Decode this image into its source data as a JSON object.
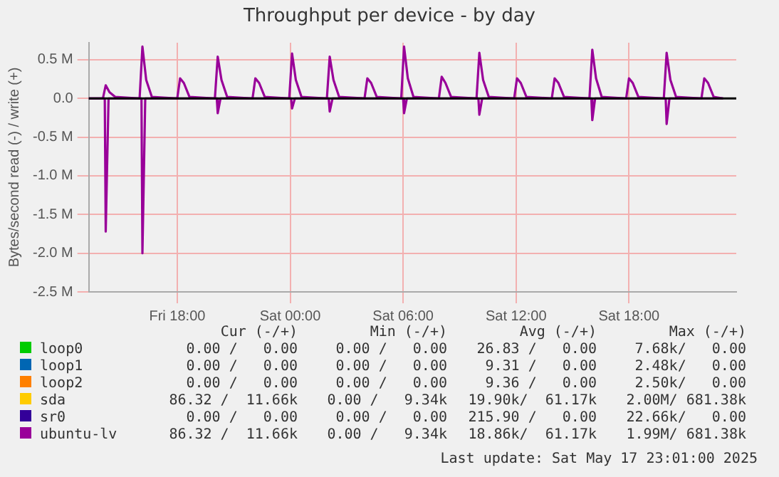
{
  "chart_data": {
    "type": "line",
    "title": "Throughput per device - by day",
    "ylabel": "Bytes/second read (-) / write (+)",
    "xlim": [
      "2025-05-16T13:18",
      "2025-05-17T23:42"
    ],
    "xticks": [
      {
        "value": "2025-05-16T18:00",
        "label": "Fri 18:00"
      },
      {
        "value": "2025-05-17T00:00",
        "label": "Sat 00:00"
      },
      {
        "value": "2025-05-17T06:00",
        "label": "Sat 06:00"
      },
      {
        "value": "2025-05-17T12:00",
        "label": "Sat 12:00"
      },
      {
        "value": "2025-05-17T18:00",
        "label": "Sat 18:00"
      }
    ],
    "ylim": [
      -2.5,
      0.72
    ],
    "yticks": [
      {
        "value": -2.5,
        "label": "-2.5 M"
      },
      {
        "value": -2,
        "label": "-2.0 M"
      },
      {
        "value": -1.5,
        "label": "-1.5 M"
      },
      {
        "value": -1,
        "label": "-1.0 M"
      },
      {
        "value": -0.5,
        "label": "-0.5 M"
      },
      {
        "value": 0,
        "label": "0.0"
      },
      {
        "value": 0.5,
        "label": "0.5 M"
      }
    ],
    "grid": true,
    "legend": "bottom",
    "marker": "none",
    "line_style": "solid",
    "ref_lines": [
      {
        "axis": "y",
        "value": 0,
        "color": "#000000"
      }
    ],
    "series": [
      {
        "name": "loop0",
        "color": "#00cc00"
      },
      {
        "name": "loop1",
        "color": "#0066b3"
      },
      {
        "name": "loop2",
        "color": "#ff8000"
      },
      {
        "name": "sda",
        "color": "#ffcc00"
      },
      {
        "name": "sr0",
        "color": "#330099"
      },
      {
        "name": "ubuntu-lv",
        "color": "#990099",
        "x": [
          "2025-05-16T13:18",
          "2025-05-16T14:03",
          "2025-05-16T14:12",
          "2025-05-16T14:24",
          "2025-05-16T14:42",
          "2025-05-16T16:00",
          "2025-05-16T16:09",
          "2025-05-16T16:21",
          "2025-05-16T16:39",
          "2025-05-16T18:00",
          "2025-05-16T18:09",
          "2025-05-16T18:21",
          "2025-05-16T18:39",
          "2025-05-16T20:00",
          "2025-05-16T20:09",
          "2025-05-16T20:21",
          "2025-05-16T20:39",
          "2025-05-16T22:00",
          "2025-05-16T22:09",
          "2025-05-16T22:21",
          "2025-05-16T22:39",
          "2025-05-16T23:57",
          "2025-05-17T00:06",
          "2025-05-17T00:18",
          "2025-05-17T00:36",
          "2025-05-17T01:57",
          "2025-05-17T02:06",
          "2025-05-17T02:18",
          "2025-05-17T02:36",
          "2025-05-17T03:57",
          "2025-05-17T04:06",
          "2025-05-17T04:18",
          "2025-05-17T04:36",
          "2025-05-17T05:54",
          "2025-05-17T06:03",
          "2025-05-17T06:15",
          "2025-05-17T06:33",
          "2025-05-17T07:54",
          "2025-05-17T08:03",
          "2025-05-17T08:15",
          "2025-05-17T08:33",
          "2025-05-17T09:54",
          "2025-05-17T10:03",
          "2025-05-17T10:15",
          "2025-05-17T10:33",
          "2025-05-17T11:54",
          "2025-05-17T12:03",
          "2025-05-17T12:15",
          "2025-05-17T12:33",
          "2025-05-17T13:54",
          "2025-05-17T14:03",
          "2025-05-17T14:15",
          "2025-05-17T14:33",
          "2025-05-17T15:54",
          "2025-05-17T16:03",
          "2025-05-17T16:15",
          "2025-05-17T16:33",
          "2025-05-17T17:51",
          "2025-05-17T18:00",
          "2025-05-17T18:12",
          "2025-05-17T18:30",
          "2025-05-17T19:51",
          "2025-05-17T20:00",
          "2025-05-17T20:12",
          "2025-05-17T20:30",
          "2025-05-17T21:51",
          "2025-05-17T22:00",
          "2025-05-17T22:12",
          "2025-05-17T22:30",
          "2025-05-17T23:00"
        ],
        "values": [
          0,
          0,
          0.17,
          0.08,
          0.02,
          0,
          0.67,
          0.24,
          0.02,
          0,
          0.26,
          0.2,
          0.02,
          0,
          0.54,
          0.24,
          0.02,
          0,
          0.26,
          0.2,
          0.02,
          0,
          0.58,
          0.24,
          0.02,
          0,
          0.54,
          0.24,
          0.02,
          0,
          0.26,
          0.2,
          0.02,
          0,
          0.67,
          0.26,
          0.02,
          0,
          0.28,
          0.2,
          0.02,
          0,
          0.59,
          0.24,
          0.02,
          0,
          0.26,
          0.2,
          0.02,
          0,
          0.26,
          0.2,
          0.02,
          0,
          0.63,
          0.26,
          0.02,
          0,
          0.26,
          0.2,
          0.02,
          0,
          0.59,
          0.24,
          0.02,
          0,
          0.26,
          0.2,
          0.02,
          0
        ]
      },
      {
        "color": "#990099",
        "x": [
          "2025-05-16T13:18",
          "2025-05-16T14:09",
          "2025-05-16T14:12",
          "2025-05-16T14:21",
          "2025-05-16T16:06",
          "2025-05-16T16:09",
          "2025-05-16T16:18",
          "2025-05-16T20:06",
          "2025-05-16T20:09",
          "2025-05-16T20:18",
          "2025-05-17T00:03",
          "2025-05-17T00:06",
          "2025-05-17T00:15",
          "2025-05-17T02:03",
          "2025-05-17T02:06",
          "2025-05-17T02:15",
          "2025-05-17T06:00",
          "2025-05-17T06:03",
          "2025-05-17T06:12",
          "2025-05-17T10:00",
          "2025-05-17T10:03",
          "2025-05-17T10:12",
          "2025-05-17T16:00",
          "2025-05-17T16:03",
          "2025-05-17T16:12",
          "2025-05-17T19:57",
          "2025-05-17T20:00",
          "2025-05-17T20:09",
          "2025-05-17T23:00"
        ],
        "values": [
          0,
          0,
          -1.72,
          0,
          0,
          -2.0,
          0,
          0,
          -0.19,
          0,
          0,
          -0.13,
          0,
          0,
          -0.17,
          0,
          0,
          -0.19,
          0,
          0,
          -0.21,
          0,
          0,
          -0.28,
          0,
          0,
          -0.33,
          0,
          0
        ]
      }
    ],
    "annotations": [
      "Cur (-/+)",
      "Min (-/+)",
      "Avg (-/+)",
      "Max (-/+)",
      "0.00 /   0.00",
      "0.00 /   0.00",
      "26.83 /   0.00",
      "7.68k/   0.00",
      "0.00 /   0.00",
      "0.00 /   0.00",
      "9.31 /   0.00",
      "2.48k/   0.00",
      "0.00 /   0.00",
      "0.00 /   0.00",
      "9.36 /   0.00",
      "2.50k/   0.00",
      "86.32 /  11.66k",
      "0.00 /   9.34k",
      "19.90k/  61.17k",
      "2.00M/ 681.38k",
      "0.00 /   0.00",
      "0.00 /   0.00",
      "215.90 /   0.00",
      "22.66k/   0.00",
      "86.32 /  11.66k",
      "0.00 /   9.34k",
      "18.86k/  61.17k",
      "1.99M/ 681.38k",
      "Last update: Sat May 17 23:01:00 2025"
    ]
  }
}
